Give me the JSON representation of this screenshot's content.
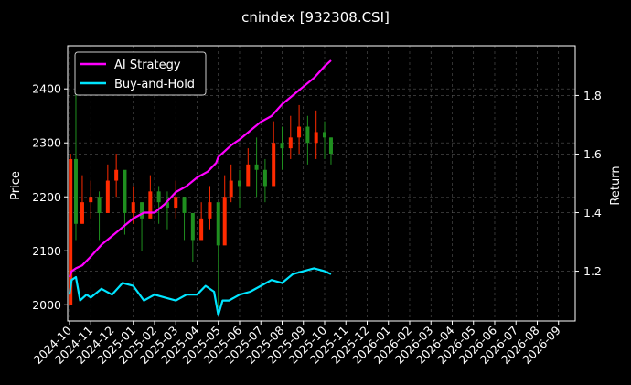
{
  "chart_data": {
    "type": "line",
    "title": "cnindex [932308.CSI]",
    "ylabel_left": "Price",
    "ylabel_right": "Return",
    "x_ticks": [
      "2024-10",
      "2024-11",
      "2024-12",
      "2025-01",
      "2025-02",
      "2025-03",
      "2025-04",
      "2025-05",
      "2025-06",
      "2025-07",
      "2025-08",
      "2025-09",
      "2025-10",
      "2025-11",
      "2025-12",
      "2026-01",
      "2026-02",
      "2026-03",
      "2026-04",
      "2026-05",
      "2026-06",
      "2026-07",
      "2026-08",
      "2026-09"
    ],
    "y_left_ticks": [
      2000,
      2100,
      2200,
      2300,
      2400
    ],
    "y_left_lim": [
      1970,
      2480
    ],
    "y_right_ticks": [
      1.2,
      1.4,
      1.6,
      1.8
    ],
    "y_right_lim": [
      1.03,
      1.97
    ],
    "x_lim_months": [
      0,
      23.7
    ],
    "grid": true,
    "legend_position": "top-left",
    "colors": {
      "background": "#000000",
      "grid": "#555555",
      "ai_strategy": "#ff00ff",
      "buy_and_hold": "#00e5ff",
      "candle_up": "#ff2a00",
      "candle_down": "#1f8f1f"
    },
    "price_candles": {
      "x": [
        0.05,
        0.3,
        0.6,
        1.0,
        1.4,
        1.8,
        2.2,
        2.6,
        3.0,
        3.4,
        3.8,
        4.2,
        4.6,
        5.0,
        5.4,
        5.8,
        6.2,
        6.6,
        7.0,
        7.3,
        7.6,
        8.0,
        8.4,
        8.8,
        9.2,
        9.6,
        10.0,
        10.4,
        10.8,
        11.2,
        11.6,
        12.0,
        12.3
      ],
      "close": [
        2270,
        2150,
        2190,
        2200,
        2170,
        2230,
        2250,
        2170,
        2190,
        2160,
        2210,
        2190,
        2180,
        2200,
        2170,
        2120,
        2160,
        2190,
        2110,
        2200,
        2230,
        2220,
        2260,
        2250,
        2220,
        2300,
        2290,
        2310,
        2330,
        2300,
        2320,
        2310,
        2280
      ],
      "high": [
        2280,
        2430,
        2240,
        2230,
        2210,
        2260,
        2280,
        2210,
        2220,
        2190,
        2240,
        2220,
        2210,
        2230,
        2200,
        2160,
        2190,
        2220,
        2150,
        2240,
        2260,
        2250,
        2290,
        2310,
        2270,
        2340,
        2330,
        2350,
        2370,
        2350,
        2360,
        2340,
        2310
      ],
      "low": [
        2000,
        2120,
        2150,
        2160,
        2120,
        2190,
        2200,
        2130,
        2150,
        2100,
        2170,
        2150,
        2140,
        2160,
        2120,
        2080,
        2120,
        2140,
        1995,
        2150,
        2190,
        2180,
        2220,
        2200,
        2190,
        2250,
        2250,
        2270,
        2280,
        2260,
        2270,
        2270,
        2260
      ]
    },
    "series": [
      {
        "name": "AI Strategy",
        "x": [
          0.0,
          0.1,
          0.3,
          0.6,
          1.0,
          1.5,
          2.0,
          2.5,
          3.0,
          3.5,
          4.0,
          4.5,
          5.0,
          5.5,
          6.0,
          6.5,
          6.9,
          7.0,
          7.3,
          7.6,
          8.0,
          8.5,
          9.0,
          9.5,
          10.0,
          10.5,
          11.0,
          11.5,
          12.0,
          12.3
        ],
        "values": [
          1.18,
          1.2,
          1.21,
          1.22,
          1.25,
          1.29,
          1.32,
          1.35,
          1.38,
          1.4,
          1.4,
          1.43,
          1.47,
          1.49,
          1.52,
          1.54,
          1.57,
          1.59,
          1.61,
          1.63,
          1.65,
          1.68,
          1.71,
          1.73,
          1.77,
          1.8,
          1.83,
          1.86,
          1.9,
          1.92
        ]
      },
      {
        "name": "Buy-and-Hold",
        "x": [
          0.0,
          0.1,
          0.3,
          0.5,
          0.8,
          1.0,
          1.5,
          2.0,
          2.5,
          3.0,
          3.5,
          4.0,
          4.5,
          5.0,
          5.5,
          6.0,
          6.4,
          6.8,
          7.0,
          7.2,
          7.5,
          8.0,
          8.5,
          9.0,
          9.5,
          10.0,
          10.5,
          11.0,
          11.5,
          12.0,
          12.3
        ],
        "values": [
          1.12,
          1.17,
          1.18,
          1.1,
          1.12,
          1.11,
          1.14,
          1.12,
          1.16,
          1.15,
          1.1,
          1.12,
          1.11,
          1.1,
          1.12,
          1.12,
          1.15,
          1.13,
          1.05,
          1.1,
          1.1,
          1.12,
          1.13,
          1.15,
          1.17,
          1.16,
          1.19,
          1.2,
          1.21,
          1.2,
          1.19
        ]
      }
    ]
  }
}
